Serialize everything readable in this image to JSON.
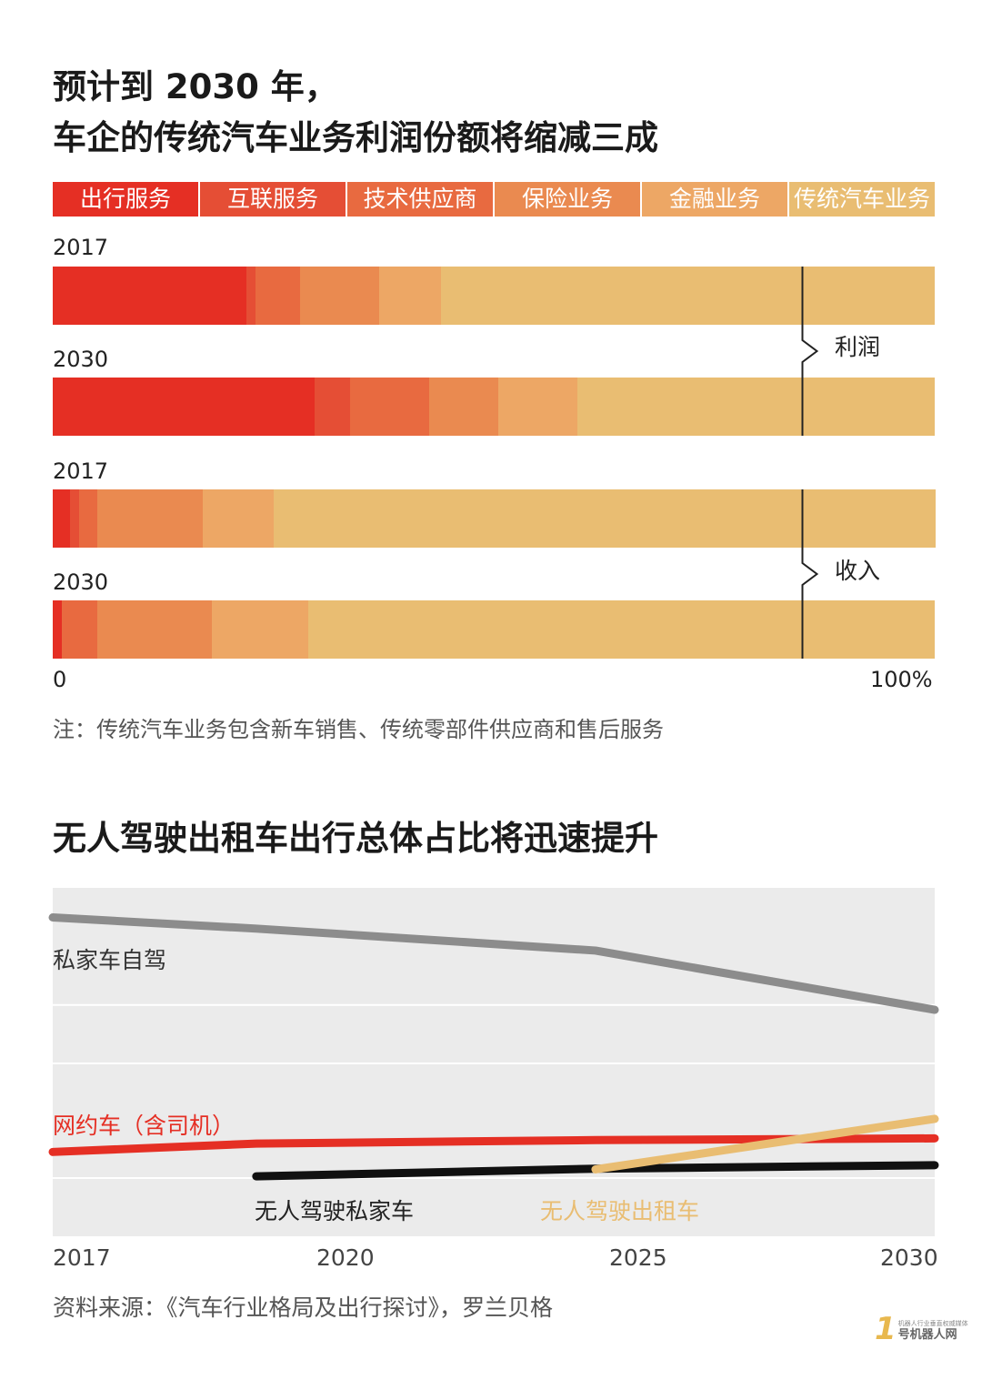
{
  "section1": {
    "title_line1": "预计到 2030 年，",
    "title_line2": "车企的传统汽车业务利润份额将缩减三成",
    "note": "注：传统汽车业务包含新车销售、传统零部件供应商和售后服务"
  },
  "section2": {
    "title": "无人驾驶出租车出行总体占比将迅速提升",
    "source": "资料来源：《汽车行业格局及出行探讨》，罗兰贝格"
  },
  "logo": {
    "mark": "1",
    "tagline": "机器人行业垂直权威媒体",
    "name": "号机器人网"
  },
  "colors": {
    "categories": [
      "#e52f24",
      "#e54e35",
      "#e86a40",
      "#ea8a50",
      "#eda765",
      "#e9bd72"
    ],
    "grid_bg": "#ebebeb",
    "line_private": "#8c8c8c",
    "line_ridehail": "#e52f24",
    "line_av_private": "#111111",
    "line_robotaxi": "#e9bd72"
  },
  "chart_data": [
    {
      "type": "bar",
      "stacked": true,
      "orientation": "horizontal",
      "units": "percent",
      "legend": [
        "出行服务",
        "互联服务",
        "技术供应商",
        "保险业务",
        "金融业务",
        "传统汽车业务"
      ],
      "groups": [
        {
          "label": "利润",
          "bars": [
            {
              "year": "2017",
              "values": [
                22.0,
                1.0,
                5.0,
                9.0,
                7.0,
                56.0
              ]
            },
            {
              "year": "2030",
              "values": [
                29.7,
                4.0,
                9.0,
                7.8,
                9.0,
                40.5
              ]
            }
          ]
        },
        {
          "label": "收入",
          "bars": [
            {
              "year": "2017",
              "values": [
                2.0,
                1.0,
                2.0,
                12.0,
                8.0,
                75.0
              ]
            },
            {
              "year": "2030",
              "values": [
                1.0,
                0.0,
                4.0,
                13.0,
                11.0,
                71.0
              ]
            }
          ]
        }
      ],
      "divider_at": 85,
      "axis_min_label": "0",
      "axis_max_label": "100%"
    },
    {
      "type": "line",
      "x": [
        "2017",
        "2020",
        "2025",
        "2030"
      ],
      "ylim": [
        0,
        100
      ],
      "series": [
        {
          "name": "私家车自驾",
          "x": [
            2017,
            2020,
            2025,
            2030
          ],
          "values": [
            91.5,
            88.3,
            82.0,
            65.0
          ]
        },
        {
          "name": "网约车（含司机）",
          "x": [
            2017,
            2020,
            2025,
            2030
          ],
          "values": [
            24.2,
            26.6,
            27.6,
            28.1
          ]
        },
        {
          "name": "无人驾驶私家车",
          "x": [
            2020,
            2025,
            2030
          ],
          "values": [
            17.2,
            19.4,
            20.4
          ]
        },
        {
          "name": "无人驾驶出租车",
          "x": [
            2025,
            2030
          ],
          "values": [
            19.2,
            33.7
          ]
        }
      ]
    }
  ]
}
